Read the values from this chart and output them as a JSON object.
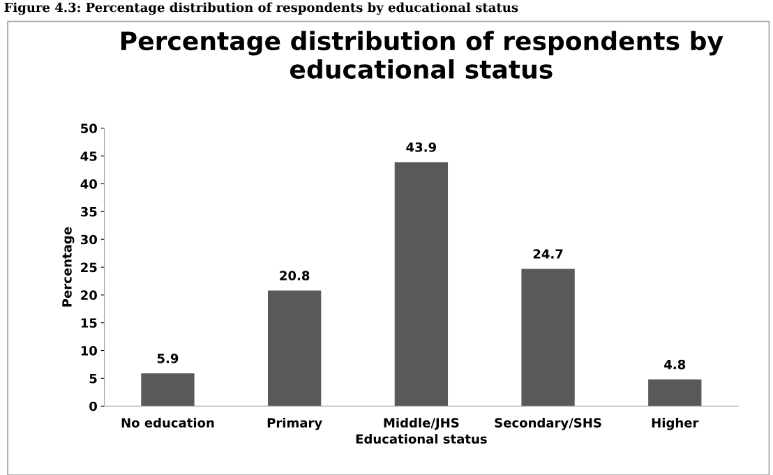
{
  "chart_data": {
    "type": "bar",
    "title": "Percentage distribution of respondents by educational status",
    "xlabel": "Educational status",
    "ylabel": "Percentage",
    "categories": [
      "No education",
      "Primary",
      "Middle/JHS",
      "Secondary/SHS",
      "Higher"
    ],
    "values": [
      5.9,
      20.8,
      43.9,
      24.7,
      4.8
    ],
    "color": "#595959",
    "data_labels": true,
    "ylim": [
      0,
      50
    ],
    "yticks": [
      0,
      5,
      10,
      15,
      20,
      25,
      30,
      35,
      40,
      45,
      50
    ],
    "grid": false,
    "annotations": [
      "Figure 4.3: Percentage distribution of respondents by educational status"
    ]
  }
}
